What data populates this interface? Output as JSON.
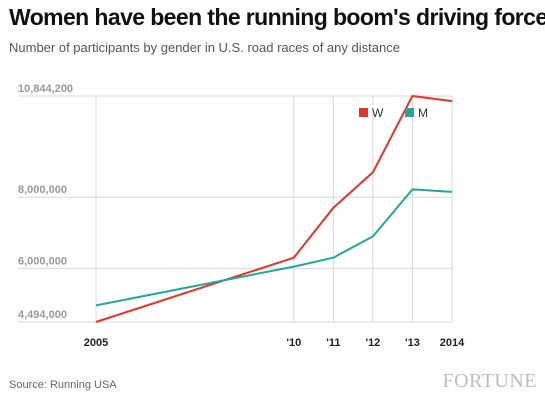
{
  "title": "Women have been the running boom's driving force",
  "subtitle": "Number of participants by gender in U.S. road races of any distance",
  "source": "Source: Running USA",
  "brand": "FORTUNE",
  "colors": {
    "W": "#e8322a",
    "M": "#21a89c",
    "grid": "#d8d8d8"
  },
  "chart_data": {
    "type": "line",
    "x": [
      2005,
      2010,
      2011,
      2012,
      2013,
      2014
    ],
    "x_tick_labels": [
      "2005",
      "'10",
      "'11",
      "'12",
      "'13",
      "2014"
    ],
    "y_ticks": [
      4494000,
      6000000,
      8000000,
      10844200
    ],
    "y_tick_labels": [
      "4,494,000",
      "6,000,000",
      "8,000,000",
      "10,844,200"
    ],
    "ylim": [
      4494000,
      10844200
    ],
    "xlim": [
      2005,
      2014
    ],
    "grid": true,
    "legend_position": "top-right",
    "series": [
      {
        "name": "W",
        "values": [
          4494000,
          6300000,
          7700000,
          8700000,
          10844200,
          10700000
        ]
      },
      {
        "name": "M",
        "values": [
          4960000,
          6050000,
          6300000,
          6900000,
          8220000,
          8150000
        ]
      }
    ]
  }
}
